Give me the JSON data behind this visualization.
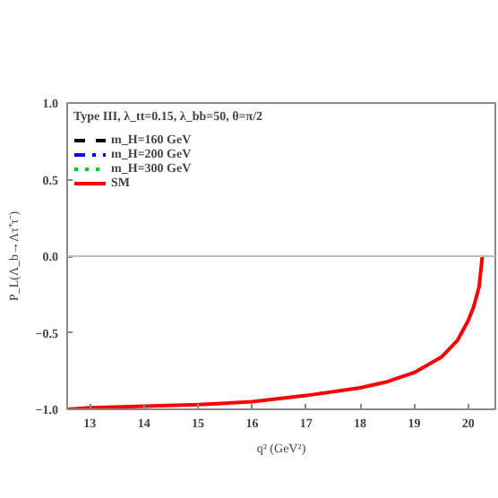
{
  "chart_data": {
    "type": "line",
    "xlabel": "q² (GeV²)",
    "ylabel": "P_L(Λ_b→Λτ⁺τ⁻)",
    "legend_title": "Type III, λ_tt=0.15, λ_bb=50, θ=π/2",
    "x": [
      12.6,
      13,
      14,
      15,
      16,
      17,
      18,
      18.5,
      19,
      19.5,
      19.8,
      20,
      20.1,
      20.2,
      20.26
    ],
    "series": [
      {
        "name": "m_H=160 GeV",
        "color": "#000000",
        "line_style": "dashed",
        "values": [
          null,
          null,
          null,
          null,
          null,
          null,
          null,
          null,
          null,
          null,
          null,
          null,
          null,
          null,
          null
        ]
      },
      {
        "name": "m_H=200 GeV",
        "color": "#0000ff",
        "line_style": "dashdot",
        "values": [
          null,
          null,
          null,
          null,
          null,
          null,
          null,
          null,
          null,
          null,
          null,
          null,
          null,
          null,
          null
        ]
      },
      {
        "name": "m_H=300 GeV",
        "color": "#00cc00",
        "line_style": "dotted",
        "values": [
          null,
          null,
          null,
          null,
          null,
          null,
          null,
          null,
          null,
          null,
          null,
          null,
          null,
          null,
          null
        ]
      },
      {
        "name": "SM",
        "color": "#ff0000",
        "line_style": "solid",
        "values": [
          -1.0,
          -0.99,
          -0.98,
          -0.97,
          -0.95,
          -0.91,
          -0.86,
          -0.82,
          -0.76,
          -0.66,
          -0.55,
          -0.42,
          -0.33,
          -0.2,
          0.0
        ]
      }
    ],
    "xlim": [
      12.58,
      20.5
    ],
    "ylim": [
      -1.0,
      1.0
    ],
    "xticks": [
      13,
      14,
      15,
      16,
      17,
      18,
      19,
      20
    ],
    "yticks": [
      {
        "value": -1.0,
        "label": "−1.0"
      },
      {
        "value": -0.5,
        "label": "−0.5"
      },
      {
        "value": 0.0,
        "label": "0.0"
      },
      {
        "value": 0.5,
        "label": "0.5"
      },
      {
        "value": 1.0,
        "label": "1.0"
      }
    ],
    "ref_lines": [
      {
        "axis": "y",
        "value": 0.0,
        "color": "#bbbbbb"
      }
    ],
    "grid": false,
    "legend": "top left",
    "marker": "none"
  }
}
